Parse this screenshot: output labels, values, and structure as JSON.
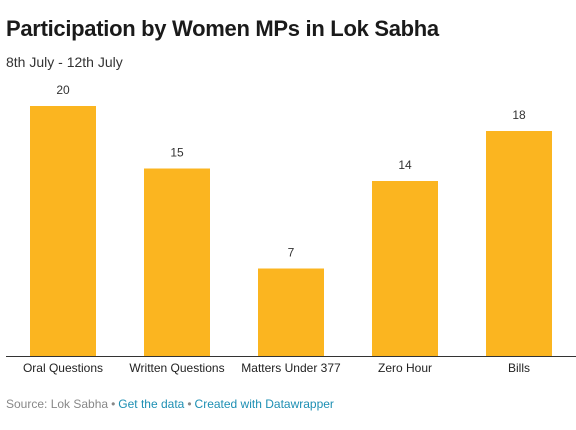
{
  "title": "Participation by Women MPs in Lok Sabha",
  "subtitle": "8th July - 12th July",
  "colors": {
    "bar": "#fbb520",
    "axis": "#333333",
    "value_label": "#333333",
    "link": "#1d8fb3"
  },
  "footer": {
    "source": "Source: Lok Sabha",
    "get_data": "Get the data",
    "created_with": "Created with Datawrapper"
  },
  "chart_data": {
    "type": "bar",
    "categories": [
      "Oral Questions",
      "Written Questions",
      "Matters Under 377",
      "Zero Hour",
      "Bills"
    ],
    "values": [
      20,
      15,
      7,
      14,
      18
    ],
    "title": "Participation by Women MPs in Lok Sabha",
    "subtitle": "8th July - 12th July",
    "ylim": [
      0,
      20
    ],
    "grid": false,
    "value_labels": true
  }
}
